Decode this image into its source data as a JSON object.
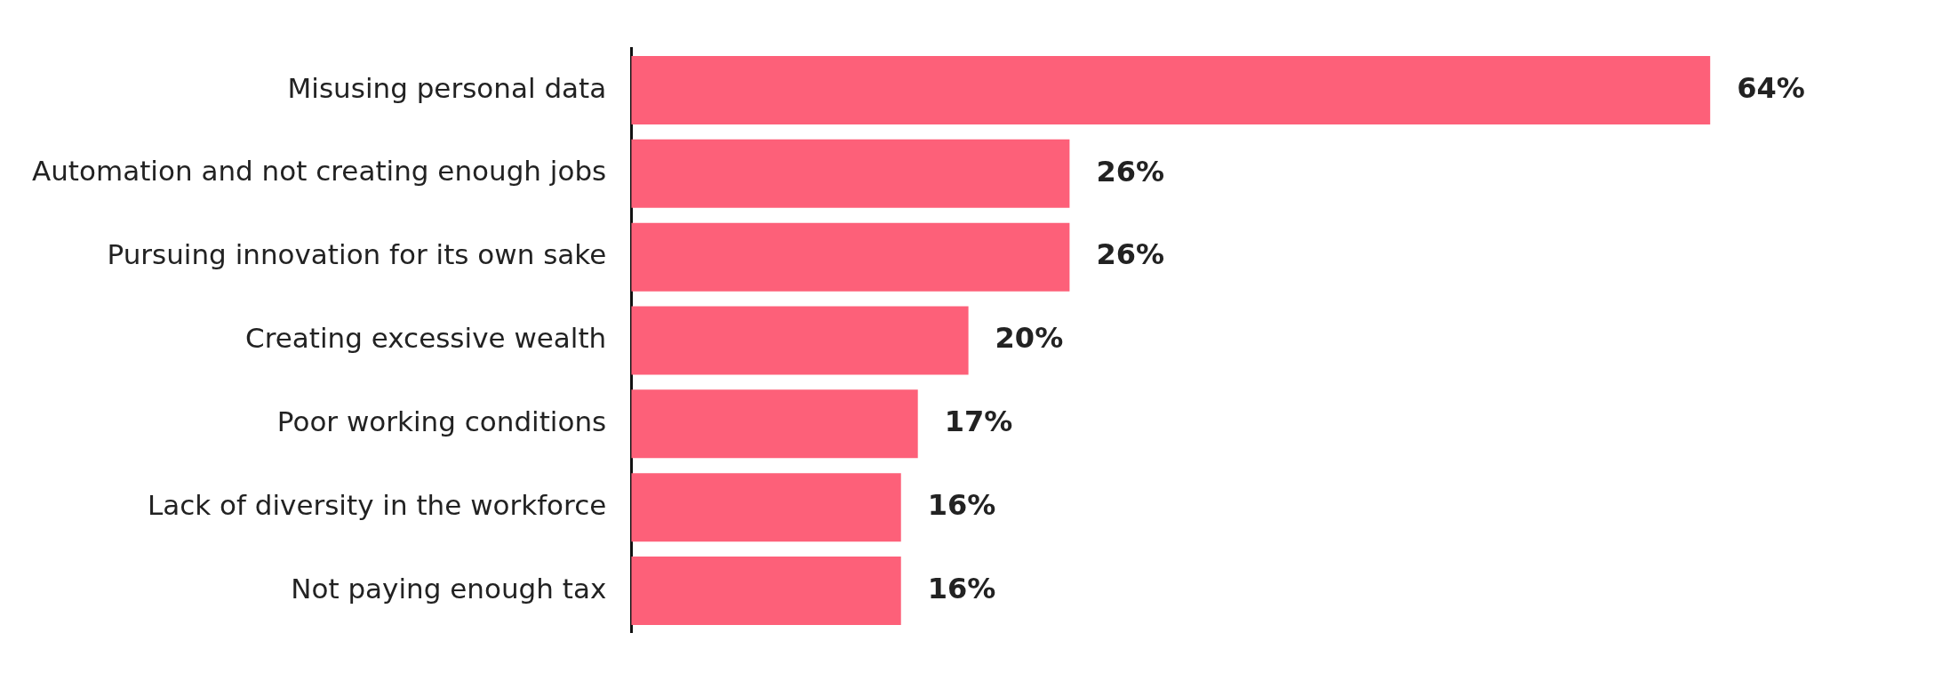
{
  "chart_data": {
    "type": "bar",
    "orientation": "horizontal",
    "categories": [
      "Misusing personal data",
      "Automation and not creating enough jobs",
      "Pursuing innovation for its own sake",
      "Creating excessive wealth",
      "Poor working conditions",
      "Lack of diversity in the workforce",
      "Not paying enough tax"
    ],
    "values": [
      64,
      26,
      26,
      20,
      17,
      16,
      16
    ],
    "value_labels": [
      "64%",
      "26%",
      "26%",
      "20%",
      "17%",
      "16%",
      "16%"
    ],
    "color": "#fd6079",
    "tick_labels": "y",
    "grid": false,
    "legend": false
  }
}
